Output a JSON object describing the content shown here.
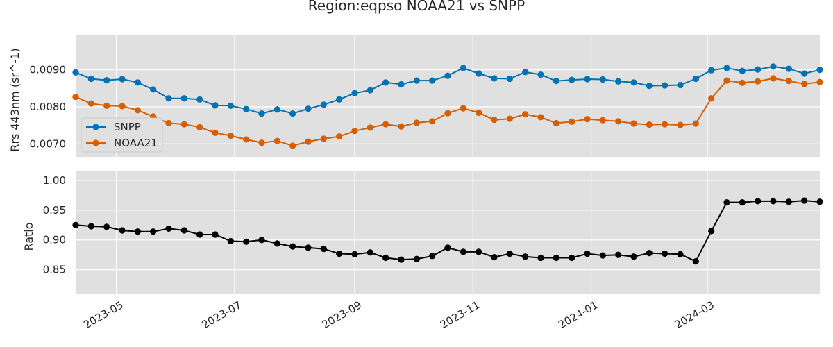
{
  "title": "Region:eqpso NOAA21 vs SNPP",
  "chart_data": [
    {
      "type": "line",
      "ylabel": "Rrs 443nm (sr^-1)",
      "xlabel": "",
      "ylim": [
        0.00665,
        0.00995
      ],
      "yticks": [
        0.007,
        0.008,
        0.009
      ],
      "ytick_labels": [
        "0.0070",
        "0.0080",
        "0.0090"
      ],
      "grid": true,
      "legend_position": "lower-left",
      "series": [
        {
          "name": "SNPP",
          "color": "#0072b2",
          "values": [
            0.00893,
            0.00876,
            0.00872,
            0.00875,
            0.00866,
            0.00847,
            0.00823,
            0.00823,
            0.0082,
            0.00804,
            0.00803,
            0.00794,
            0.00782,
            0.00793,
            0.00782,
            0.00795,
            0.00806,
            0.0082,
            0.00837,
            0.00845,
            0.00866,
            0.00861,
            0.00871,
            0.00871,
            0.00884,
            0.00905,
            0.0089,
            0.00877,
            0.00876,
            0.00894,
            0.00887,
            0.0087,
            0.00873,
            0.00875,
            0.00874,
            0.00869,
            0.00866,
            0.00857,
            0.00858,
            0.00859,
            0.00876,
            0.00899,
            0.00905,
            0.00897,
            0.00901,
            0.00909,
            0.00903,
            0.0089,
            0.009
          ]
        },
        {
          "name": "NOAA21",
          "color": "#d55e00",
          "values": [
            0.00827,
            0.00809,
            0.00803,
            0.00802,
            0.00791,
            0.00774,
            0.00756,
            0.00753,
            0.00745,
            0.0073,
            0.00722,
            0.00712,
            0.00703,
            0.00708,
            0.00695,
            0.00706,
            0.00714,
            0.0072,
            0.00735,
            0.00744,
            0.00753,
            0.00747,
            0.00757,
            0.00761,
            0.00783,
            0.00796,
            0.00784,
            0.00765,
            0.00768,
            0.0078,
            0.00772,
            0.00756,
            0.0076,
            0.00767,
            0.00764,
            0.00761,
            0.00755,
            0.00752,
            0.00753,
            0.00751,
            0.00755,
            0.00823,
            0.00871,
            0.00865,
            0.00869,
            0.00877,
            0.0087,
            0.00862,
            0.00867
          ]
        }
      ]
    },
    {
      "type": "line",
      "ylabel": "Ratio",
      "xlabel": "",
      "ylim": [
        0.81,
        1.015
      ],
      "yticks": [
        0.85,
        0.9,
        0.95,
        1.0
      ],
      "ytick_labels": [
        "0.85",
        "0.90",
        "0.95",
        "1.00"
      ],
      "grid": true,
      "series": [
        {
          "name": "",
          "color": "#000000",
          "values": [
            0.925,
            0.923,
            0.922,
            0.916,
            0.914,
            0.914,
            0.919,
            0.916,
            0.909,
            0.909,
            0.898,
            0.897,
            0.9,
            0.894,
            0.889,
            0.887,
            0.885,
            0.877,
            0.876,
            0.879,
            0.87,
            0.867,
            0.868,
            0.873,
            0.887,
            0.88,
            0.88,
            0.871,
            0.877,
            0.872,
            0.87,
            0.87,
            0.87,
            0.877,
            0.874,
            0.875,
            0.872,
            0.878,
            0.877,
            0.876,
            0.864,
            0.915,
            0.963,
            0.963,
            0.965,
            0.965,
            0.964,
            0.966,
            0.964
          ]
        }
      ]
    }
  ],
  "x": [
    "2023-04-10",
    "2023-04-18",
    "2023-04-26",
    "2023-05-04",
    "2023-05-12",
    "2023-05-20",
    "2023-05-28",
    "2023-06-05",
    "2023-06-13",
    "2023-06-21",
    "2023-06-29",
    "2023-07-07",
    "2023-07-15",
    "2023-07-23",
    "2023-07-31",
    "2023-08-08",
    "2023-08-16",
    "2023-08-24",
    "2023-09-01",
    "2023-09-09",
    "2023-09-17",
    "2023-09-25",
    "2023-10-03",
    "2023-10-11",
    "2023-10-19",
    "2023-10-27",
    "2023-11-04",
    "2023-11-12",
    "2023-11-20",
    "2023-11-28",
    "2023-12-06",
    "2023-12-14",
    "2023-12-22",
    "2023-12-30",
    "2024-01-07",
    "2024-01-15",
    "2024-01-23",
    "2024-01-31",
    "2024-02-08",
    "2024-02-16",
    "2024-02-24",
    "2024-03-03",
    "2024-03-11",
    "2024-03-19",
    "2024-03-27",
    "2024-04-04",
    "2024-04-12",
    "2024-04-20",
    "2024-04-28"
  ],
  "xlim": [
    "2023-04-10",
    "2024-04-28"
  ],
  "xticks": [
    "2023-05-01",
    "2023-07-01",
    "2023-09-01",
    "2023-11-01",
    "2024-01-01",
    "2024-03-01"
  ],
  "xtick_labels": [
    "2023-05",
    "2023-07",
    "2023-09",
    "2023-11",
    "2024-01",
    "2024-03"
  ],
  "colors": {
    "panel_bg": "#e0e0e0",
    "grid": "#ffffff",
    "text": "#262626"
  }
}
